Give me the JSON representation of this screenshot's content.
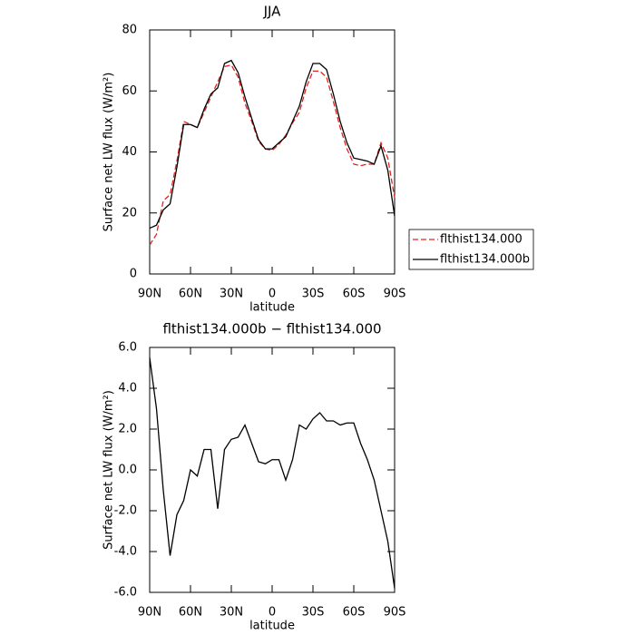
{
  "chart_data": [
    {
      "type": "line",
      "title": "JJA",
      "xlabel": "latitude",
      "ylabel": "Surface net LW flux (W/m²)",
      "x": [
        90,
        85,
        80,
        75,
        70,
        65,
        60,
        55,
        50,
        45,
        40,
        35,
        30,
        25,
        20,
        15,
        10,
        5,
        0,
        -5,
        -10,
        -15,
        -20,
        -25,
        -30,
        -35,
        -40,
        -45,
        -50,
        -55,
        -60,
        -65,
        -70,
        -75,
        -80,
        -85,
        -90
      ],
      "xlim": [
        90,
        -90
      ],
      "xticks": [
        {
          "value": 90,
          "label": "90N"
        },
        {
          "value": 60,
          "label": "60N"
        },
        {
          "value": 30,
          "label": "30N"
        },
        0,
        {
          "value": -30,
          "label": "30S"
        },
        {
          "value": -60,
          "label": "60S"
        },
        {
          "value": -90,
          "label": "90S"
        }
      ],
      "ylim": [
        0,
        80
      ],
      "yticks": [
        0,
        20,
        40,
        60,
        80
      ],
      "legend": "right",
      "series": [
        {
          "name": "flthist134.000",
          "color": "#e8201c",
          "dash": true,
          "values": [
            9.5,
            13,
            24,
            26,
            37,
            50,
            49,
            48,
            53,
            58,
            63,
            68,
            68.5,
            64.5,
            56,
            50,
            43.5,
            41,
            40.5,
            42.5,
            45.5,
            49.5,
            53,
            61,
            66.5,
            66.5,
            64.5,
            56.5,
            48,
            41,
            36,
            35.5,
            36,
            36,
            43,
            38,
            25
          ]
        },
        {
          "name": "flthist134.000b",
          "color": "#000000",
          "dash": false,
          "values": [
            15,
            16,
            21,
            23,
            35,
            49,
            49,
            48,
            54,
            59,
            61,
            69,
            70,
            66,
            58,
            51,
            44,
            41,
            41,
            43,
            45,
            50,
            55,
            63,
            69,
            69,
            67,
            59,
            50,
            43,
            38,
            37.5,
            37,
            36,
            42,
            34,
            19
          ]
        }
      ]
    },
    {
      "type": "line",
      "title": "flthist134.000b − flthist134.000",
      "xlabel": "latitude",
      "ylabel": "Surface net LW flux (W/m²)",
      "x": [
        90,
        85,
        80,
        75,
        70,
        65,
        60,
        55,
        50,
        45,
        40,
        35,
        30,
        25,
        20,
        15,
        10,
        5,
        0,
        -5,
        -10,
        -15,
        -20,
        -25,
        -30,
        -35,
        -40,
        -45,
        -50,
        -55,
        -60,
        -65,
        -70,
        -75,
        -80,
        -85,
        -90
      ],
      "xlim": [
        90,
        -90
      ],
      "xticks": [
        {
          "value": 90,
          "label": "90N"
        },
        {
          "value": 60,
          "label": "60N"
        },
        {
          "value": 30,
          "label": "30N"
        },
        0,
        {
          "value": -30,
          "label": "30S"
        },
        {
          "value": -60,
          "label": "60S"
        },
        {
          "value": -90,
          "label": "90S"
        }
      ],
      "ylim": [
        -6,
        6
      ],
      "yticks": [
        {
          "value": -6,
          "label": "-6.0"
        },
        {
          "value": -4,
          "label": "-4.0"
        },
        {
          "value": -2,
          "label": "-2.0"
        },
        {
          "value": 0,
          "label": "0.0"
        },
        {
          "value": 2,
          "label": "2.0"
        },
        {
          "value": 4,
          "label": "4.0"
        },
        {
          "value": 6,
          "label": "6.0"
        }
      ],
      "color": "#000000",
      "values": [
        5.5,
        3,
        -1,
        -4.2,
        -2.2,
        -1.5,
        0,
        -0.3,
        1,
        1,
        -1.9,
        1,
        1.5,
        1.6,
        2.2,
        1.3,
        0.4,
        0.3,
        0.5,
        0.5,
        -0.5,
        0.5,
        2.2,
        2,
        2.5,
        2.8,
        2.4,
        2.4,
        2.2,
        2.3,
        2.3,
        1.3,
        0.5,
        -0.5,
        -2,
        -3.5,
        -5.8
      ]
    }
  ]
}
